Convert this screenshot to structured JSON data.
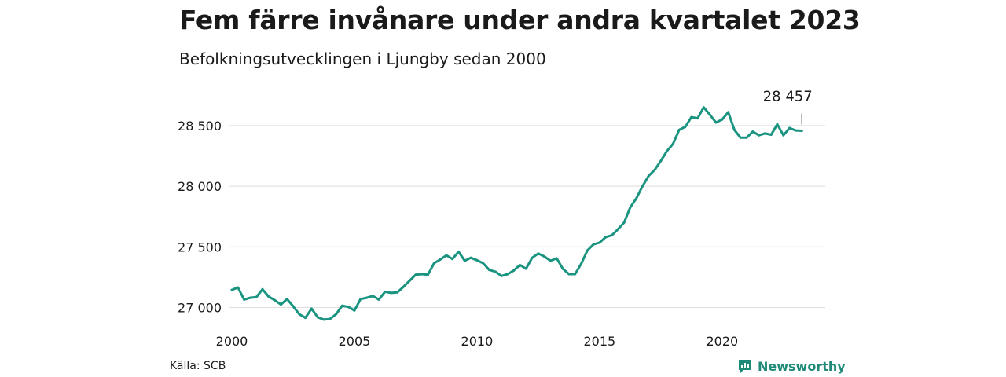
{
  "header": {
    "title": "Fem färre invånare under andra kvartalet 2023",
    "subtitle": "Befolkningsutvecklingen i Ljungby sedan 2000"
  },
  "footer": {
    "source": "Källa: SCB",
    "brand": "Newsworthy"
  },
  "colors": {
    "line": "#1a9480",
    "grid": "#dedede",
    "text": "#1a1a1a",
    "brand": "#1f8a77"
  },
  "chart_data": {
    "type": "line",
    "ylim": [
      26880,
      28700
    ],
    "yticks": [
      27000,
      27500,
      28000,
      28500
    ],
    "ytick_labels": [
      "27 000",
      "27 500",
      "28 000",
      "28 500"
    ],
    "xlim": [
      2000,
      2023.5
    ],
    "xticks": [
      2000,
      2005,
      2010,
      2015,
      2020
    ],
    "xtick_labels": [
      "2000",
      "2005",
      "2010",
      "2015",
      "2020"
    ],
    "grid": true,
    "end_label": "28 457",
    "series": [
      {
        "values": [
          [
            2000.0,
            27145
          ],
          [
            2000.25,
            27165
          ],
          [
            2000.5,
            27065
          ],
          [
            2000.75,
            27080
          ],
          [
            2001.0,
            27085
          ],
          [
            2001.25,
            27150
          ],
          [
            2001.5,
            27090
          ],
          [
            2001.75,
            27060
          ],
          [
            2002.0,
            27025
          ],
          [
            2002.25,
            27070
          ],
          [
            2002.5,
            27010
          ],
          [
            2002.75,
            26945
          ],
          [
            2003.0,
            26915
          ],
          [
            2003.25,
            26990
          ],
          [
            2003.5,
            26920
          ],
          [
            2003.75,
            26900
          ],
          [
            2004.0,
            26905
          ],
          [
            2004.25,
            26945
          ],
          [
            2004.5,
            27015
          ],
          [
            2004.75,
            27005
          ],
          [
            2005.0,
            26975
          ],
          [
            2005.25,
            27070
          ],
          [
            2005.5,
            27080
          ],
          [
            2005.75,
            27095
          ],
          [
            2006.0,
            27065
          ],
          [
            2006.25,
            27130
          ],
          [
            2006.5,
            27120
          ],
          [
            2006.75,
            27125
          ],
          [
            2007.0,
            27170
          ],
          [
            2007.25,
            27220
          ],
          [
            2007.5,
            27270
          ],
          [
            2007.75,
            27275
          ],
          [
            2008.0,
            27270
          ],
          [
            2008.25,
            27365
          ],
          [
            2008.5,
            27395
          ],
          [
            2008.75,
            27430
          ],
          [
            2009.0,
            27400
          ],
          [
            2009.25,
            27460
          ],
          [
            2009.5,
            27385
          ],
          [
            2009.75,
            27410
          ],
          [
            2010.0,
            27390
          ],
          [
            2010.25,
            27365
          ],
          [
            2010.5,
            27310
          ],
          [
            2010.75,
            27295
          ],
          [
            2011.0,
            27260
          ],
          [
            2011.25,
            27275
          ],
          [
            2011.5,
            27305
          ],
          [
            2011.75,
            27350
          ],
          [
            2012.0,
            27320
          ],
          [
            2012.25,
            27410
          ],
          [
            2012.5,
            27445
          ],
          [
            2012.75,
            27420
          ],
          [
            2013.0,
            27385
          ],
          [
            2013.25,
            27405
          ],
          [
            2013.5,
            27320
          ],
          [
            2013.75,
            27275
          ],
          [
            2014.0,
            27275
          ],
          [
            2014.25,
            27360
          ],
          [
            2014.5,
            27470
          ],
          [
            2014.75,
            27520
          ],
          [
            2015.0,
            27535
          ],
          [
            2015.25,
            27580
          ],
          [
            2015.5,
            27595
          ],
          [
            2015.75,
            27645
          ],
          [
            2016.0,
            27700
          ],
          [
            2016.25,
            27825
          ],
          [
            2016.5,
            27900
          ],
          [
            2016.75,
            28000
          ],
          [
            2017.0,
            28085
          ],
          [
            2017.25,
            28135
          ],
          [
            2017.5,
            28210
          ],
          [
            2017.75,
            28290
          ],
          [
            2018.0,
            28350
          ],
          [
            2018.25,
            28465
          ],
          [
            2018.5,
            28490
          ],
          [
            2018.75,
            28570
          ],
          [
            2019.0,
            28560
          ],
          [
            2019.25,
            28650
          ],
          [
            2019.5,
            28590
          ],
          [
            2019.75,
            28525
          ],
          [
            2020.0,
            28550
          ],
          [
            2020.25,
            28610
          ],
          [
            2020.5,
            28465
          ],
          [
            2020.75,
            28400
          ],
          [
            2021.0,
            28400
          ],
          [
            2021.25,
            28450
          ],
          [
            2021.5,
            28420
          ],
          [
            2021.75,
            28435
          ],
          [
            2022.0,
            28425
          ],
          [
            2022.25,
            28510
          ],
          [
            2022.5,
            28420
          ],
          [
            2022.75,
            28480
          ],
          [
            2023.0,
            28460
          ],
          [
            2023.25,
            28457
          ]
        ]
      }
    ]
  }
}
